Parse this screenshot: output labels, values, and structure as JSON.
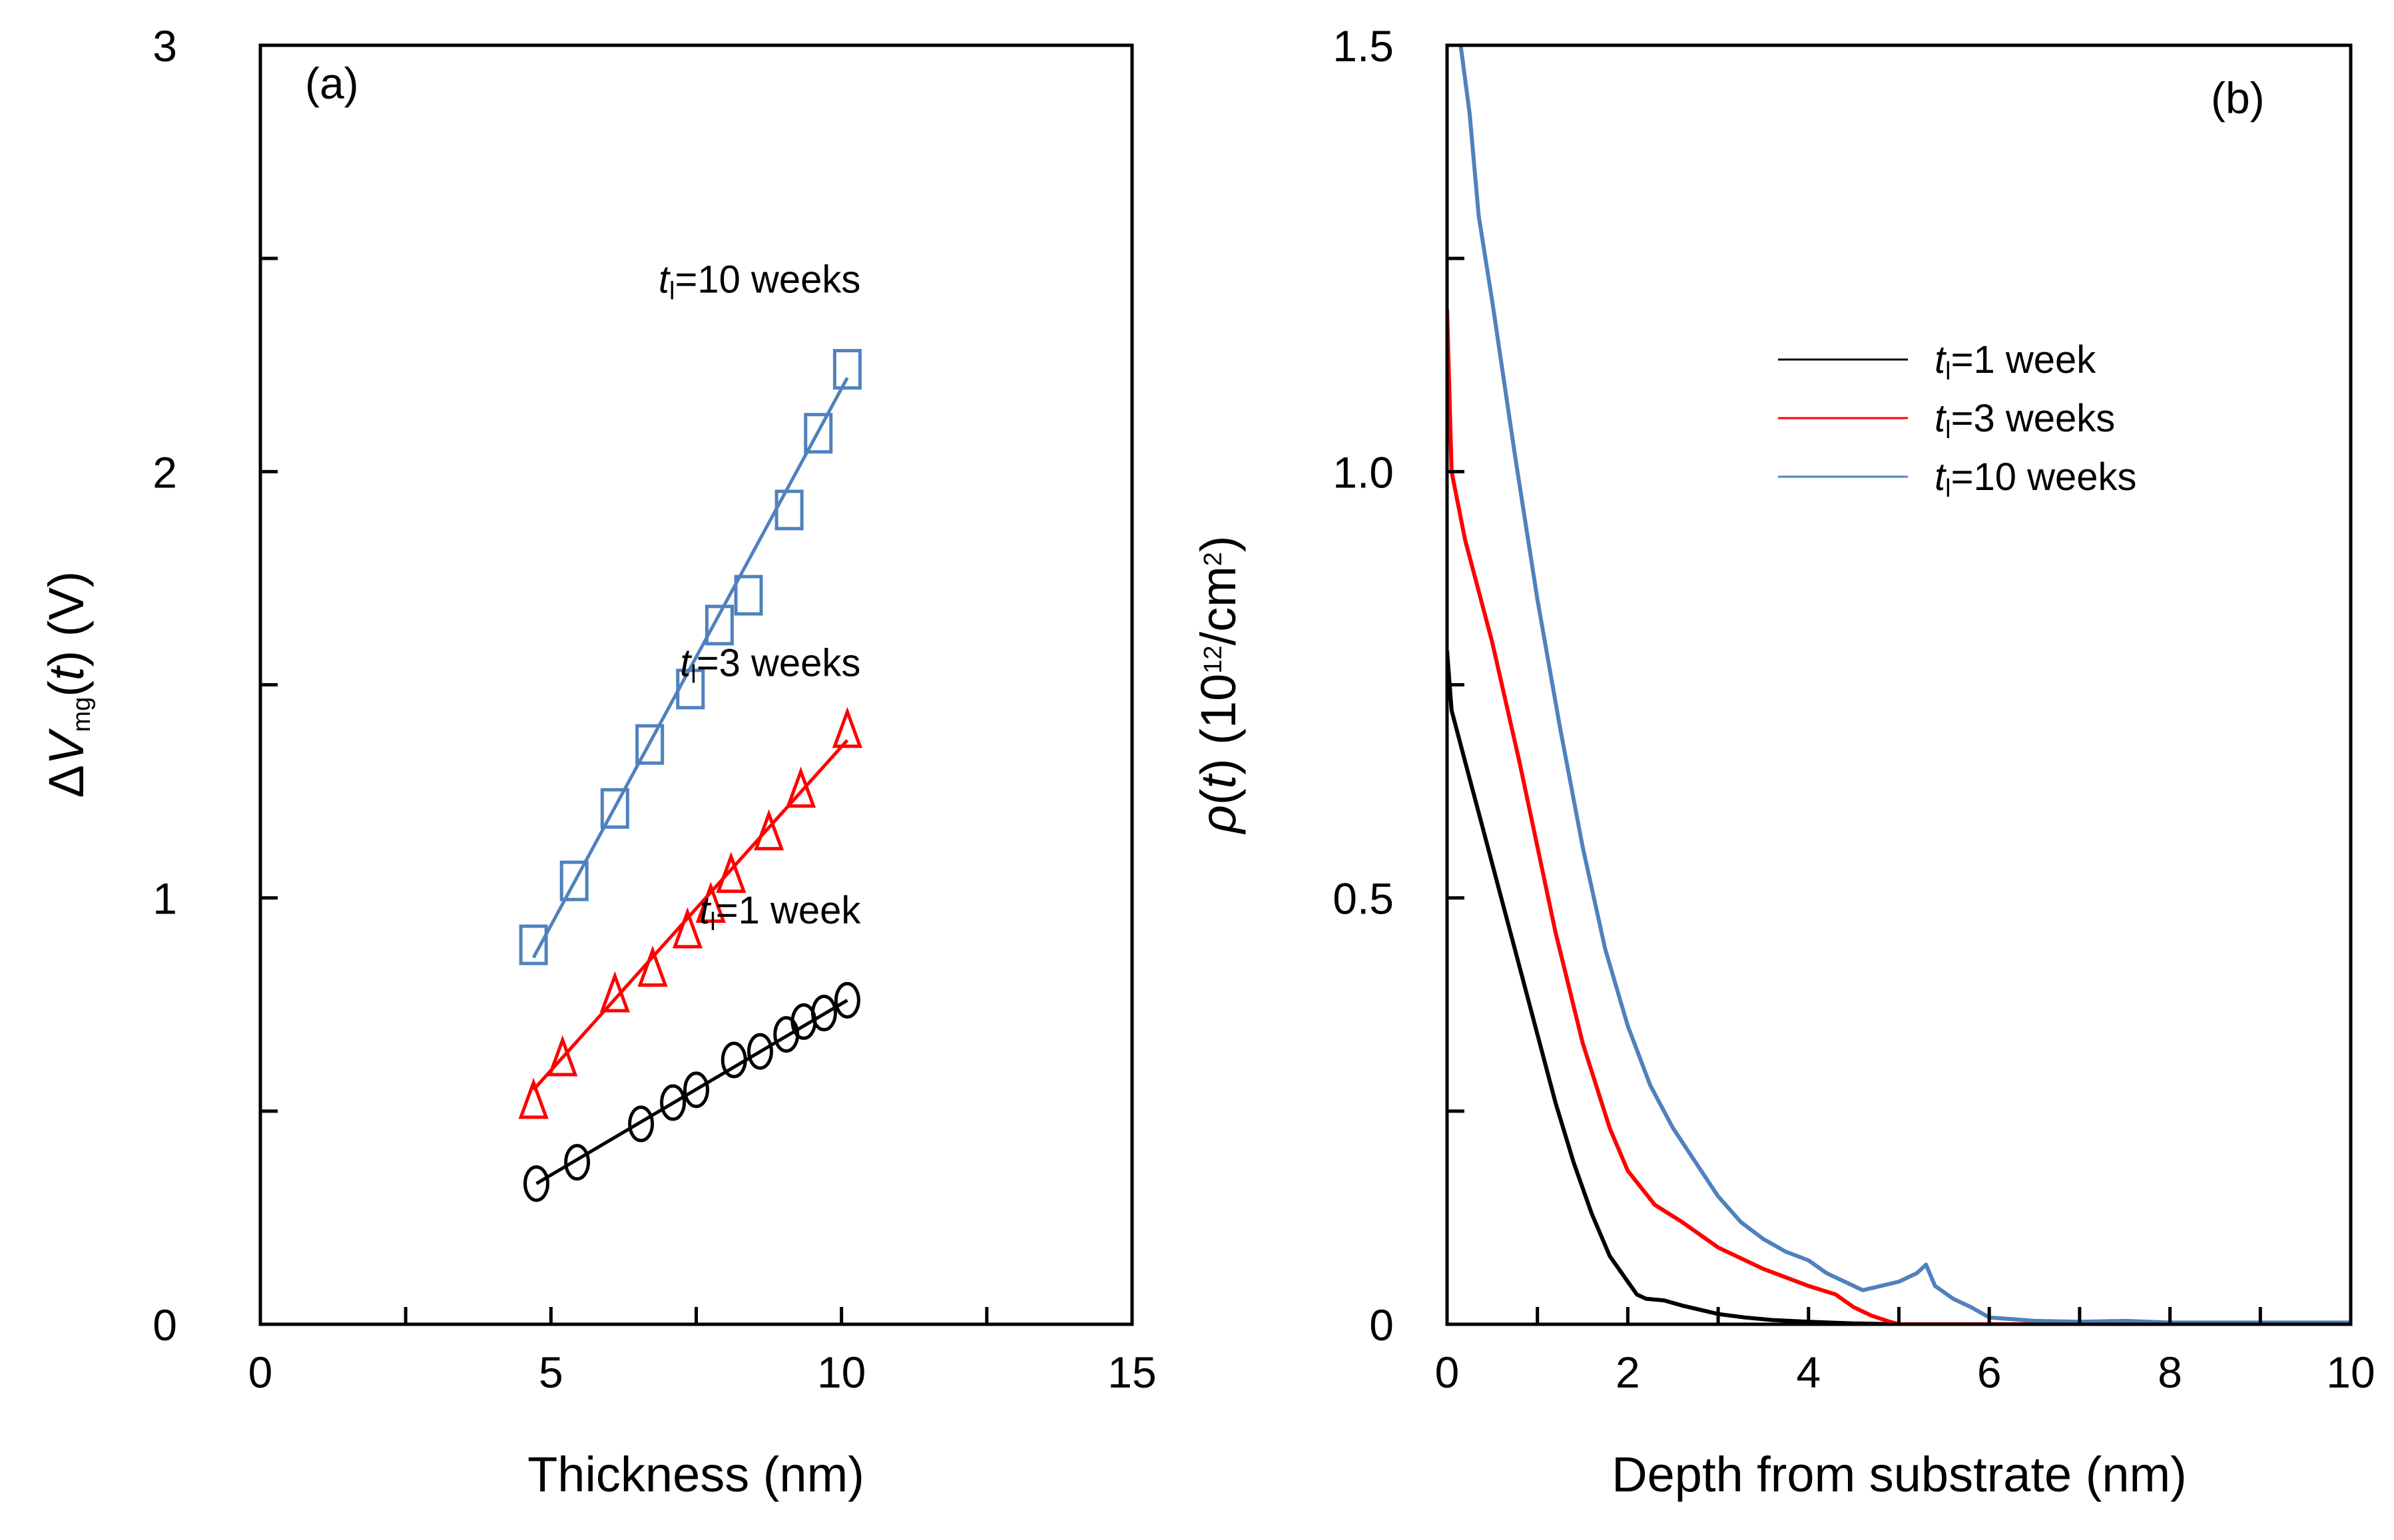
{
  "chart_data": [
    {
      "type": "scatter",
      "panel_label": "(a)",
      "xlabel": "Thickness (nm)",
      "ylabel": {
        "prefix": "Δ",
        "symbol": "V",
        "subscript": "mg",
        "suffix_open": "(",
        "arg": "t",
        "suffix_close": ") (V)"
      },
      "xlim": [
        0,
        15
      ],
      "ylim": [
        0,
        3
      ],
      "x_ticks": [
        {
          "value": 0,
          "label": "0"
        },
        {
          "value": 5,
          "label": "5"
        },
        {
          "value": 10,
          "label": "10"
        },
        {
          "value": 15,
          "label": "15"
        }
      ],
      "x_minor_ticks": [
        2.5,
        7.5,
        12.5
      ],
      "y_ticks": [
        {
          "value": 0,
          "label": "0"
        },
        {
          "value": 1,
          "label": "1"
        },
        {
          "value": 2,
          "label": "2"
        },
        {
          "value": 3,
          "label": "3"
        }
      ],
      "y_minor_ticks": [
        0.5,
        1.5,
        2.5
      ],
      "series": [
        {
          "name": "t_l=1 week",
          "annotation": {
            "symbol": "t",
            "subscript": "l",
            "text": "=1 week"
          },
          "annotation_anchor": {
            "x": 10.1,
            "y": 0.94
          },
          "color": "#000000",
          "marker": "circle",
          "x": [
            4.75,
            5.45,
            6.55,
            7.1,
            7.5,
            8.15,
            8.6,
            9.05,
            9.35,
            9.7,
            10.1
          ],
          "y": [
            0.33,
            0.38,
            0.47,
            0.52,
            0.55,
            0.62,
            0.64,
            0.68,
            0.71,
            0.73,
            0.76
          ],
          "fit": {
            "x": [
              4.75,
              10.1
            ],
            "y": [
              0.33,
              0.76
            ]
          }
        },
        {
          "name": "t_l=3 weeks",
          "annotation": {
            "symbol": "t",
            "subscript": "l",
            "text": "=3 weeks"
          },
          "annotation_anchor": {
            "x": 10.1,
            "y": 1.52
          },
          "color": "#ff0000",
          "marker": "triangle",
          "x": [
            4.7,
            5.2,
            6.1,
            6.75,
            7.35,
            7.75,
            8.1,
            8.75,
            9.3,
            10.1
          ],
          "y": [
            0.52,
            0.62,
            0.77,
            0.83,
            0.92,
            0.98,
            1.05,
            1.15,
            1.25,
            1.39
          ],
          "fit": {
            "x": [
              4.7,
              10.1
            ],
            "y": [
              0.55,
              1.37
            ]
          }
        },
        {
          "name": "t_l=10 weeks",
          "annotation": {
            "symbol": "t",
            "subscript": "l",
            "text": "=10 weeks"
          },
          "annotation_anchor": {
            "x": 10.1,
            "y": 2.42
          },
          "color": "#4f81bd",
          "marker": "square",
          "x": [
            4.7,
            5.4,
            6.1,
            6.7,
            7.4,
            7.9,
            8.4,
            9.1,
            9.6,
            10.1
          ],
          "y": [
            0.89,
            1.04,
            1.21,
            1.36,
            1.49,
            1.64,
            1.71,
            1.91,
            2.09,
            2.24
          ],
          "fit": {
            "x": [
              4.7,
              10.1
            ],
            "y": [
              0.86,
              2.22
            ]
          }
        }
      ]
    },
    {
      "type": "line",
      "panel_label": "(b)",
      "xlabel": "Depth from substrate (nm)",
      "ylabel": {
        "symbol": "ρ",
        "suffix_open": "(",
        "arg": "t",
        "suffix_mid": ") (10",
        "superscript": "12",
        "suffix_mid2": "/cm",
        "superscript2": "2",
        "suffix_close": ")"
      },
      "xlim": [
        0,
        10
      ],
      "ylim": [
        0,
        1.5
      ],
      "x_ticks": [
        {
          "value": 0,
          "label": "0"
        },
        {
          "value": 2,
          "label": "2"
        },
        {
          "value": 4,
          "label": "4"
        },
        {
          "value": 6,
          "label": "6"
        },
        {
          "value": 8,
          "label": "8"
        },
        {
          "value": 10,
          "label": "10"
        }
      ],
      "x_minor_ticks": [
        1,
        3,
        5,
        7,
        9
      ],
      "y_ticks": [
        {
          "value": 0,
          "label": "0"
        },
        {
          "value": 0.5,
          "label": "0.5"
        },
        {
          "value": 1.0,
          "label": "1.0"
        },
        {
          "value": 1.5,
          "label": "1.5"
        }
      ],
      "y_minor_ticks": [
        0.25,
        0.75,
        1.25
      ],
      "legend_position": "upper-right",
      "series": [
        {
          "name": "t_l=1 week",
          "legend": {
            "symbol": "t",
            "subscript": "l",
            "text": "=1 week"
          },
          "color": "#000000",
          "x": [
            0.0,
            0.05,
            0.2,
            0.4,
            0.6,
            0.8,
            1.0,
            1.2,
            1.4,
            1.6,
            1.8,
            2.0,
            2.1,
            2.2,
            2.4,
            2.6,
            2.8,
            3.0,
            3.3,
            3.6,
            4.0,
            4.5,
            5.0,
            10.0
          ],
          "y": [
            0.79,
            0.72,
            0.66,
            0.58,
            0.5,
            0.42,
            0.34,
            0.26,
            0.19,
            0.13,
            0.08,
            0.05,
            0.035,
            0.03,
            0.028,
            0.022,
            0.017,
            0.012,
            0.008,
            0.005,
            0.003,
            0.001,
            0.0,
            0.0
          ]
        },
        {
          "name": "t_l=3 weeks",
          "legend": {
            "symbol": "t",
            "subscript": "l",
            "text": "=3 weeks"
          },
          "color": "#ff0000",
          "x": [
            0.0,
            0.05,
            0.2,
            0.5,
            0.8,
            1.0,
            1.2,
            1.5,
            1.8,
            2.0,
            2.3,
            2.6,
            3.0,
            3.5,
            4.0,
            4.3,
            4.5,
            4.7,
            4.9,
            5.0,
            5.5,
            6.0,
            10.0
          ],
          "y": [
            1.19,
            1.0,
            0.92,
            0.8,
            0.66,
            0.56,
            0.46,
            0.33,
            0.23,
            0.18,
            0.14,
            0.12,
            0.09,
            0.065,
            0.045,
            0.035,
            0.02,
            0.01,
            0.003,
            0.0,
            0.0,
            0.0,
            0.0
          ]
        },
        {
          "name": "t_l=10 weeks",
          "legend": {
            "symbol": "t",
            "subscript": "l",
            "text": "=10 weeks"
          },
          "color": "#4f81bd",
          "x": [
            0.15,
            0.25,
            0.35,
            0.5,
            0.75,
            1.0,
            1.25,
            1.5,
            1.75,
            2.0,
            2.25,
            2.5,
            2.75,
            3.0,
            3.25,
            3.5,
            3.75,
            4.0,
            4.2,
            4.4,
            4.6,
            4.8,
            5.0,
            5.2,
            5.3,
            5.4,
            5.6,
            5.8,
            6.0,
            6.5,
            7.0,
            7.5,
            8.0,
            10.0
          ],
          "y": [
            1.5,
            1.42,
            1.3,
            1.2,
            1.02,
            0.85,
            0.7,
            0.56,
            0.44,
            0.35,
            0.28,
            0.23,
            0.19,
            0.15,
            0.12,
            0.1,
            0.085,
            0.075,
            0.06,
            0.05,
            0.04,
            0.045,
            0.05,
            0.06,
            0.07,
            0.045,
            0.03,
            0.02,
            0.008,
            0.004,
            0.003,
            0.004,
            0.002,
            0.002
          ]
        }
      ]
    }
  ]
}
